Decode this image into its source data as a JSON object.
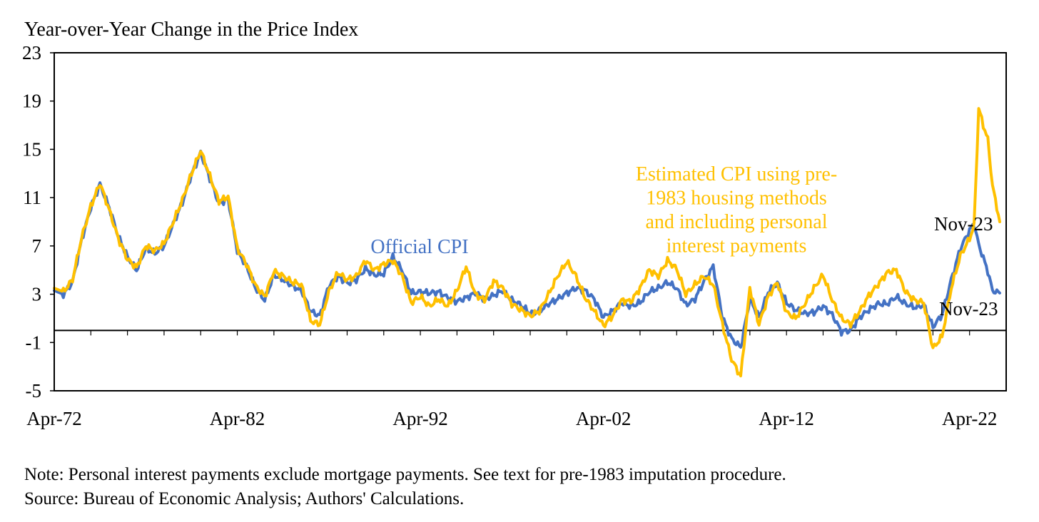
{
  "chart_data": {
    "type": "line",
    "title": "Year-over-Year Change in the Price Index",
    "xlabel": "",
    "ylabel": "",
    "ylim": [
      -5,
      23
    ],
    "yticks": [
      23,
      19,
      15,
      11,
      7,
      3,
      -1,
      -5
    ],
    "xlim": [
      1972.25,
      2024.25
    ],
    "xticks": [
      {
        "label": "Apr-72",
        "x": 1972.25
      },
      {
        "label": "Apr-82",
        "x": 1982.25
      },
      {
        "label": "Apr-92",
        "x": 1992.25
      },
      {
        "label": "Apr-02",
        "x": 2002.25
      },
      {
        "label": "Apr-12",
        "x": 2012.25
      },
      {
        "label": "Apr-22",
        "x": 2022.25
      }
    ],
    "series": [
      {
        "name": "Official CPI",
        "color": "#4472C4",
        "points": [
          [
            1972.25,
            3.3
          ],
          [
            1972.75,
            3.0
          ],
          [
            1973.25,
            4.0
          ],
          [
            1973.75,
            7.5
          ],
          [
            1974.25,
            10.2
          ],
          [
            1974.75,
            12.1
          ],
          [
            1975.25,
            10.2
          ],
          [
            1975.75,
            7.8
          ],
          [
            1976.25,
            6.1
          ],
          [
            1976.75,
            5.0
          ],
          [
            1977.25,
            6.8
          ],
          [
            1977.75,
            6.4
          ],
          [
            1978.25,
            7.0
          ],
          [
            1978.75,
            8.8
          ],
          [
            1979.25,
            10.6
          ],
          [
            1979.75,
            12.9
          ],
          [
            1980.25,
            14.7
          ],
          [
            1980.75,
            12.6
          ],
          [
            1981.25,
            10.5
          ],
          [
            1981.75,
            10.9
          ],
          [
            1982.25,
            6.6
          ],
          [
            1982.75,
            5.3
          ],
          [
            1983.25,
            3.5
          ],
          [
            1983.75,
            2.5
          ],
          [
            1984.25,
            4.6
          ],
          [
            1984.75,
            4.2
          ],
          [
            1985.25,
            3.7
          ],
          [
            1985.75,
            3.3
          ],
          [
            1986.25,
            1.6
          ],
          [
            1986.75,
            1.2
          ],
          [
            1987.25,
            3.7
          ],
          [
            1987.75,
            4.5
          ],
          [
            1988.25,
            3.9
          ],
          [
            1988.75,
            4.2
          ],
          [
            1989.25,
            5.1
          ],
          [
            1989.75,
            4.6
          ],
          [
            1990.25,
            4.7
          ],
          [
            1990.75,
            6.1
          ],
          [
            1991.25,
            5.0
          ],
          [
            1991.75,
            3.1
          ],
          [
            1992.25,
            3.2
          ],
          [
            1992.75,
            3.1
          ],
          [
            1993.25,
            3.2
          ],
          [
            1993.75,
            2.7
          ],
          [
            1994.25,
            2.4
          ],
          [
            1994.75,
            2.7
          ],
          [
            1995.25,
            3.1
          ],
          [
            1995.75,
            2.6
          ],
          [
            1996.25,
            2.9
          ],
          [
            1996.75,
            3.3
          ],
          [
            1997.25,
            2.5
          ],
          [
            1997.75,
            2.1
          ],
          [
            1998.25,
            1.4
          ],
          [
            1998.75,
            1.6
          ],
          [
            1999.25,
            2.2
          ],
          [
            1999.75,
            2.6
          ],
          [
            2000.25,
            3.1
          ],
          [
            2000.75,
            3.5
          ],
          [
            2001.25,
            3.3
          ],
          [
            2001.75,
            2.6
          ],
          [
            2002.25,
            1.1
          ],
          [
            2002.75,
            1.6
          ],
          [
            2003.25,
            2.3
          ],
          [
            2003.75,
            2.0
          ],
          [
            2004.25,
            2.3
          ],
          [
            2004.75,
            3.2
          ],
          [
            2005.25,
            3.5
          ],
          [
            2005.75,
            4.0
          ],
          [
            2006.25,
            3.5
          ],
          [
            2006.75,
            2.1
          ],
          [
            2007.25,
            2.6
          ],
          [
            2007.75,
            4.1
          ],
          [
            2008.25,
            5.3
          ],
          [
            2008.75,
            1.1
          ],
          [
            2009.25,
            -0.7
          ],
          [
            2009.75,
            -1.4
          ],
          [
            2010.25,
            2.6
          ],
          [
            2010.75,
            1.1
          ],
          [
            2011.25,
            3.2
          ],
          [
            2011.75,
            3.9
          ],
          [
            2012.25,
            2.3
          ],
          [
            2012.75,
            1.7
          ],
          [
            2013.25,
            1.4
          ],
          [
            2013.75,
            1.5
          ],
          [
            2014.25,
            2.0
          ],
          [
            2014.75,
            1.3
          ],
          [
            2015.25,
            -0.1
          ],
          [
            2015.75,
            0.0
          ],
          [
            2016.25,
            1.1
          ],
          [
            2016.75,
            1.7
          ],
          [
            2017.25,
            2.2
          ],
          [
            2017.75,
            2.2
          ],
          [
            2018.25,
            2.8
          ],
          [
            2018.75,
            2.2
          ],
          [
            2019.25,
            1.9
          ],
          [
            2019.75,
            2.1
          ],
          [
            2020.25,
            0.3
          ],
          [
            2020.75,
            1.3
          ],
          [
            2021.25,
            4.2
          ],
          [
            2021.75,
            6.8
          ],
          [
            2022.25,
            8.3
          ],
          [
            2022.5,
            8.8
          ],
          [
            2022.75,
            7.1
          ],
          [
            2023.25,
            4.9
          ],
          [
            2023.5,
            3.3
          ],
          [
            2023.9,
            3.1
          ]
        ]
      },
      {
        "name": "Estimated CPI using pre-1983 housing methods and including personal interest payments",
        "color": "#FFC000",
        "points": [
          [
            1972.25,
            3.5
          ],
          [
            1972.75,
            3.2
          ],
          [
            1973.25,
            4.2
          ],
          [
            1973.75,
            7.7
          ],
          [
            1974.25,
            10.3
          ],
          [
            1974.75,
            12.2
          ],
          [
            1975.25,
            10.0
          ],
          [
            1975.75,
            7.6
          ],
          [
            1976.25,
            5.9
          ],
          [
            1976.75,
            5.2
          ],
          [
            1977.25,
            7.0
          ],
          [
            1977.75,
            6.6
          ],
          [
            1978.25,
            7.2
          ],
          [
            1978.75,
            9.0
          ],
          [
            1979.25,
            10.8
          ],
          [
            1979.75,
            13.0
          ],
          [
            1980.25,
            14.9
          ],
          [
            1980.75,
            12.8
          ],
          [
            1981.25,
            10.7
          ],
          [
            1981.75,
            11.1
          ],
          [
            1982.25,
            6.8
          ],
          [
            1982.75,
            5.5
          ],
          [
            1983.25,
            3.7
          ],
          [
            1983.75,
            2.8
          ],
          [
            1984.25,
            4.9
          ],
          [
            1984.75,
            4.5
          ],
          [
            1985.25,
            4.0
          ],
          [
            1985.75,
            3.8
          ],
          [
            1986.25,
            0.8
          ],
          [
            1986.75,
            0.5
          ],
          [
            1987.25,
            3.2
          ],
          [
            1987.75,
            4.8
          ],
          [
            1988.25,
            4.2
          ],
          [
            1988.75,
            4.5
          ],
          [
            1989.25,
            5.8
          ],
          [
            1989.75,
            5.0
          ],
          [
            1990.25,
            5.5
          ],
          [
            1990.75,
            5.8
          ],
          [
            1991.25,
            4.5
          ],
          [
            1991.75,
            2.3
          ],
          [
            1992.25,
            2.8
          ],
          [
            1992.75,
            2.0
          ],
          [
            1993.25,
            2.6
          ],
          [
            1993.75,
            2.0
          ],
          [
            1994.25,
            3.3
          ],
          [
            1994.75,
            5.3
          ],
          [
            1995.25,
            3.0
          ],
          [
            1995.75,
            2.5
          ],
          [
            1996.25,
            4.1
          ],
          [
            1996.75,
            3.5
          ],
          [
            1997.25,
            2.2
          ],
          [
            1997.75,
            1.7
          ],
          [
            1998.25,
            1.2
          ],
          [
            1998.75,
            1.6
          ],
          [
            1999.25,
            3.0
          ],
          [
            1999.75,
            4.5
          ],
          [
            2000.25,
            5.7
          ],
          [
            2000.75,
            4.5
          ],
          [
            2001.25,
            2.7
          ],
          [
            2001.75,
            1.6
          ],
          [
            2002.25,
            0.4
          ],
          [
            2002.75,
            1.2
          ],
          [
            2003.25,
            2.5
          ],
          [
            2003.75,
            2.4
          ],
          [
            2004.25,
            3.5
          ],
          [
            2004.75,
            5.0
          ],
          [
            2005.25,
            4.5
          ],
          [
            2005.75,
            5.8
          ],
          [
            2006.25,
            5.1
          ],
          [
            2006.75,
            3.0
          ],
          [
            2007.25,
            3.8
          ],
          [
            2007.75,
            4.5
          ],
          [
            2008.25,
            3.8
          ],
          [
            2008.75,
            0.5
          ],
          [
            2009.25,
            -2.4
          ],
          [
            2009.75,
            -3.8
          ],
          [
            2010.25,
            3.5
          ],
          [
            2010.75,
            0.5
          ],
          [
            2011.25,
            2.8
          ],
          [
            2011.75,
            4.0
          ],
          [
            2012.25,
            1.5
          ],
          [
            2012.75,
            1.0
          ],
          [
            2013.25,
            2.2
          ],
          [
            2013.75,
            3.5
          ],
          [
            2014.25,
            4.6
          ],
          [
            2014.75,
            2.5
          ],
          [
            2015.25,
            1.0
          ],
          [
            2015.75,
            0.5
          ],
          [
            2016.25,
            1.6
          ],
          [
            2016.75,
            2.9
          ],
          [
            2017.25,
            3.8
          ],
          [
            2017.75,
            4.8
          ],
          [
            2018.25,
            5.0
          ],
          [
            2018.75,
            3.2
          ],
          [
            2019.25,
            2.5
          ],
          [
            2019.75,
            2.3
          ],
          [
            2020.25,
            -1.5
          ],
          [
            2020.75,
            -0.5
          ],
          [
            2021.25,
            3.5
          ],
          [
            2021.75,
            6.2
          ],
          [
            2022.25,
            7.6
          ],
          [
            2022.5,
            8.7
          ],
          [
            2022.75,
            18.4
          ],
          [
            2023.0,
            17.0
          ],
          [
            2023.25,
            15.8
          ],
          [
            2023.5,
            12.0
          ],
          [
            2023.9,
            9.0
          ]
        ]
      }
    ],
    "annotations": [
      {
        "id": "official-cpi",
        "text": "Official CPI"
      },
      {
        "id": "estimated-cpi",
        "lines": [
          "Estimated CPI using pre-",
          "1983 housing methods",
          "and including  personal",
          "interest payments"
        ]
      },
      {
        "id": "nov23-estimated",
        "text": "Nov-23"
      },
      {
        "id": "nov23-official",
        "text": "Nov-23"
      }
    ]
  },
  "notes": {
    "note": "Note: Personal interest payments exclude mortgage payments. See text for pre-1983 imputation procedure.",
    "source": "Source: Bureau of Economic Analysis; Authors' Calculations."
  }
}
